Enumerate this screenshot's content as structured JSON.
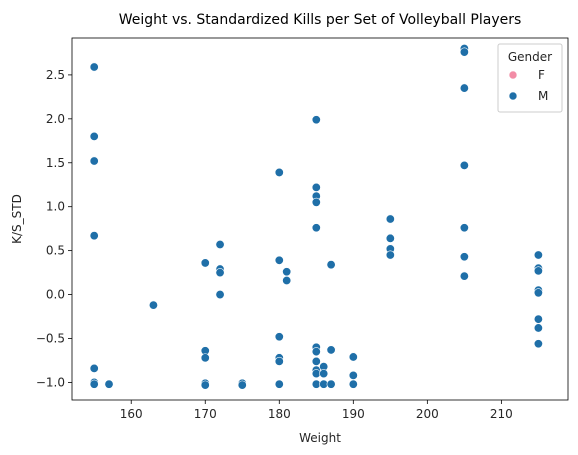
{
  "chart_data": {
    "type": "scatter",
    "title": "Weight vs. Standardized Kills per Set of Volleyball Players",
    "xlabel": "Weight",
    "ylabel": "K/S_STD",
    "xlim": [
      152,
      219
    ],
    "ylim": [
      -1.2,
      2.92
    ],
    "xticks": [
      160,
      170,
      180,
      190,
      200,
      210
    ],
    "yticks": [
      -1.0,
      -0.5,
      0.0,
      0.5,
      1.0,
      1.5,
      2.0,
      2.5
    ],
    "ytick_labels": [
      "−1.0",
      "−0.5",
      "0.0",
      "0.5",
      "1.0",
      "1.5",
      "2.0",
      "2.5"
    ],
    "grid": false,
    "legend": {
      "title": "Gender",
      "placement": "top-right",
      "entries": [
        {
          "label": "F",
          "color": "#f28ca6"
        },
        {
          "label": "M",
          "color": "#1f6fa8"
        }
      ]
    },
    "series": [
      {
        "name": "F",
        "color": "#f28ca6",
        "points": []
      },
      {
        "name": "M",
        "color": "#1f6fa8",
        "points": [
          [
            155,
            2.59
          ],
          [
            155,
            1.8
          ],
          [
            155,
            1.52
          ],
          [
            155,
            0.67
          ],
          [
            155,
            -0.84
          ],
          [
            155,
            -1.0
          ],
          [
            155,
            -1.02
          ],
          [
            157,
            -1.02
          ],
          [
            163,
            -0.12
          ],
          [
            170,
            0.36
          ],
          [
            170,
            -0.64
          ],
          [
            170,
            -0.72
          ],
          [
            170,
            -1.01
          ],
          [
            170,
            -1.03
          ],
          [
            172,
            0.57
          ],
          [
            172,
            0.29
          ],
          [
            172,
            0.25
          ],
          [
            172,
            0.0
          ],
          [
            175,
            -1.01
          ],
          [
            175,
            -1.03
          ],
          [
            180,
            1.39
          ],
          [
            180,
            0.39
          ],
          [
            180,
            -0.48
          ],
          [
            180,
            -0.72
          ],
          [
            180,
            -0.76
          ],
          [
            180,
            -1.02
          ],
          [
            181,
            0.26
          ],
          [
            181,
            0.16
          ],
          [
            185,
            1.99
          ],
          [
            185,
            1.22
          ],
          [
            185,
            1.12
          ],
          [
            185,
            1.05
          ],
          [
            185,
            0.76
          ],
          [
            185,
            -0.6
          ],
          [
            185,
            -0.65
          ],
          [
            185,
            -0.76
          ],
          [
            185,
            -0.86
          ],
          [
            185,
            -0.9
          ],
          [
            185,
            -1.02
          ],
          [
            186,
            -0.82
          ],
          [
            186,
            -0.9
          ],
          [
            186,
            -1.02
          ],
          [
            187,
            0.34
          ],
          [
            187,
            -0.63
          ],
          [
            187,
            -1.02
          ],
          [
            190,
            -0.71
          ],
          [
            190,
            -0.92
          ],
          [
            190,
            -1.02
          ],
          [
            195,
            0.86
          ],
          [
            195,
            0.64
          ],
          [
            195,
            0.52
          ],
          [
            195,
            0.45
          ],
          [
            205,
            2.8
          ],
          [
            205,
            2.76
          ],
          [
            205,
            2.35
          ],
          [
            205,
            1.47
          ],
          [
            205,
            0.76
          ],
          [
            205,
            0.43
          ],
          [
            205,
            0.21
          ],
          [
            215,
            0.45
          ],
          [
            215,
            0.3
          ],
          [
            215,
            0.27
          ],
          [
            215,
            0.05
          ],
          [
            215,
            0.02
          ],
          [
            215,
            -0.28
          ],
          [
            215,
            -0.38
          ],
          [
            215,
            -0.56
          ]
        ]
      }
    ]
  }
}
